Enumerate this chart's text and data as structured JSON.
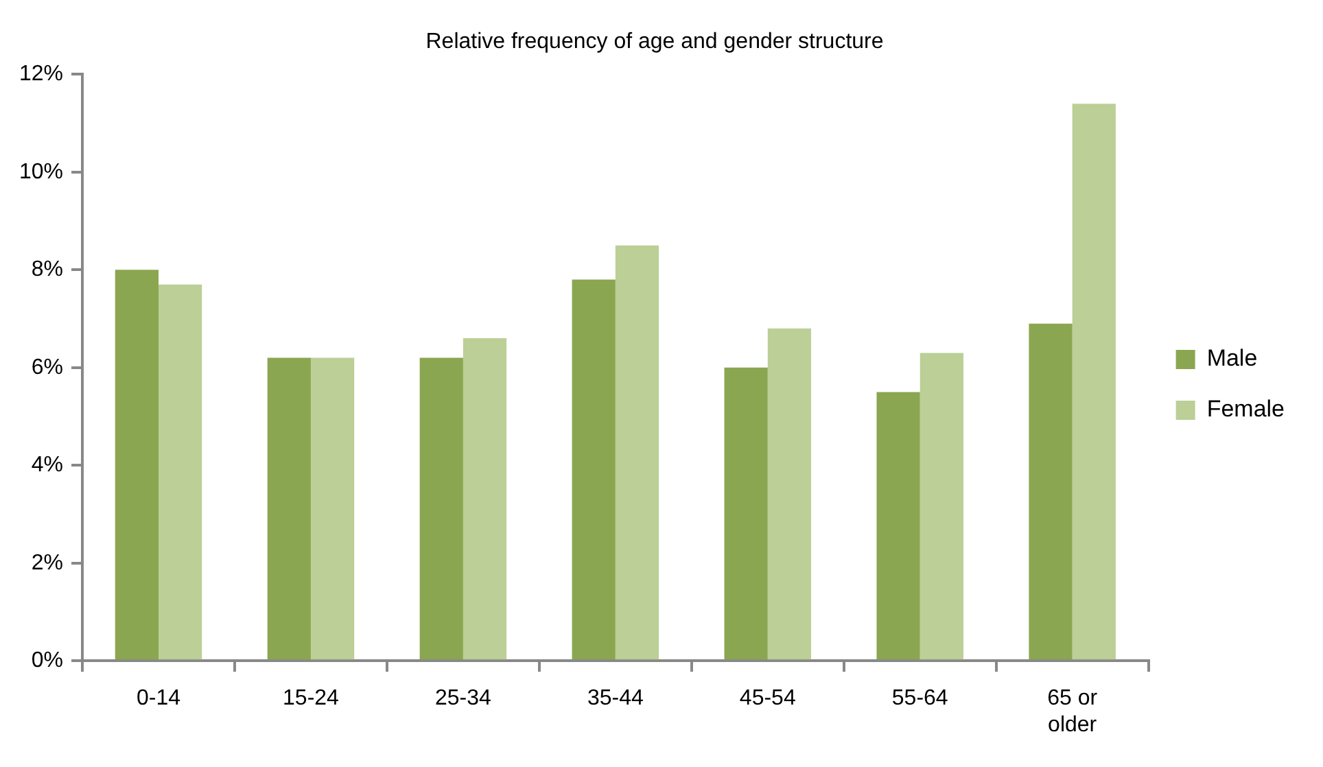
{
  "chart_data": {
    "type": "bar",
    "title": "Relative frequency of age and gender structure",
    "categories": [
      "0-14",
      "15-24",
      "25-34",
      "35-44",
      "45-54",
      "55-64",
      "65 or older"
    ],
    "series": [
      {
        "name": "Male",
        "color": "#8ba650",
        "values": [
          8.0,
          6.2,
          6.2,
          7.8,
          6.0,
          5.5,
          6.9
        ]
      },
      {
        "name": "Female",
        "color": "#bbcf96",
        "values": [
          7.7,
          6.2,
          6.6,
          8.5,
          6.8,
          6.3,
          11.4
        ]
      }
    ],
    "ylim": [
      0,
      12
    ],
    "yticks": [
      {
        "value": 0,
        "label": "0%"
      },
      {
        "value": 2,
        "label": "2%"
      },
      {
        "value": 4,
        "label": "4%"
      },
      {
        "value": 6,
        "label": "6%"
      },
      {
        "value": 8,
        "label": "8%"
      },
      {
        "value": 10,
        "label": "10%"
      },
      {
        "value": 12,
        "label": "12%"
      }
    ],
    "grid": false,
    "legend": "right"
  }
}
